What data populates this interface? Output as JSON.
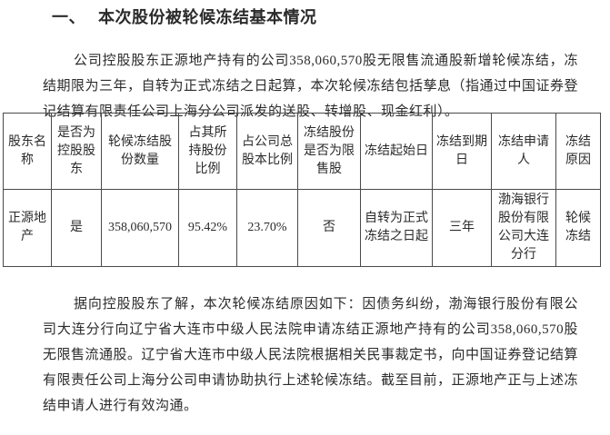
{
  "document": {
    "heading": {
      "number": "一、",
      "title": "本次股份被轮候冻结基本情况"
    },
    "paragraphs": {
      "intro": "公司控股股东正源地产持有的公司358,060,570股无限售流通股新增轮候冻结，冻结期限为三年，自转为正式冻结之日起算，本次轮候冻结包括孳息（指通过中国证券登记结算有限责任公司上海分公司派发的送股、转增股、现金红利）。",
      "reason": "据向控股股东了解，本次轮候冻结原因如下：因债务纠纷，渤海银行股份有限公司大连分行向辽宁省大连市中级人民法院申请冻结正源地产持有的公司358,060,570股无限售流通股。辽宁省大连市中级人民法院根据相关民事裁定书，向中国证券登记结算有限责任公司上海分公司申请协助执行上述轮候冻结。截至目前，正源地产正与上述冻结申请人进行有效沟通。"
    },
    "table": {
      "headers": [
        "股东名称",
        "是否为控股股东",
        "轮候冻结股份数量",
        "占其所持股份比例",
        "占公司总股本比例",
        "冻结股份是否为限售股",
        "冻结起始日",
        "冻结到期日",
        "冻结申请人",
        "冻结原因"
      ],
      "rows": [
        [
          "正源地产",
          "是",
          "358,060,570",
          "95.42%",
          "23.70%",
          "否",
          "自转为正式冻结之日起",
          "三年",
          "渤海银行股份有限公司大连分行",
          "轮候冻结"
        ]
      ]
    },
    "colors": {
      "background": "#ffffff",
      "text": "#2b2b2b",
      "table_border": "#4a4a4a"
    }
  }
}
